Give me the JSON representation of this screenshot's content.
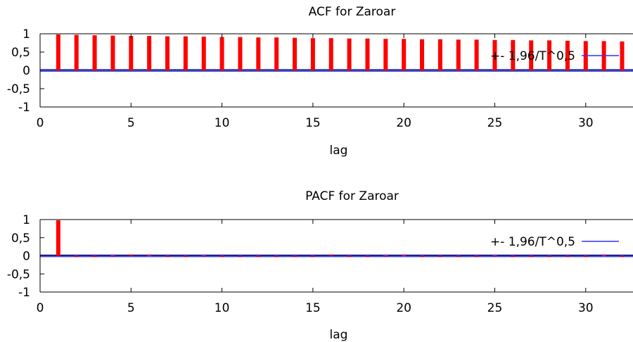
{
  "chart_data": [
    {
      "type": "bar",
      "title": "ACF for Zaroar",
      "xlabel": "lag",
      "ylabel": "",
      "xlim": [
        0,
        32.6
      ],
      "ylim": [
        -1,
        1
      ],
      "xticks": [
        "0",
        "5",
        "10",
        "15",
        "20",
        "25",
        "30"
      ],
      "xtick_values": [
        0,
        5,
        10,
        15,
        20,
        25,
        30
      ],
      "yticks": [
        "1",
        "0,5",
        "0",
        "-0,5",
        "-1"
      ],
      "ytick_values": [
        1,
        0.5,
        0,
        -0.5,
        -1
      ],
      "bar_color": "#ff0000",
      "band_color": "#3333ff",
      "legend_label": "+- 1,96/T^0,5",
      "legend_position": "top-right",
      "band": 0.025,
      "lags": [
        1,
        2,
        3,
        4,
        5,
        6,
        7,
        8,
        9,
        10,
        11,
        12,
        13,
        14,
        15,
        16,
        17,
        18,
        19,
        20,
        21,
        22,
        23,
        24,
        25,
        26,
        27,
        28,
        29,
        30,
        31,
        32
      ],
      "values": [
        0.98,
        0.97,
        0.96,
        0.95,
        0.94,
        0.94,
        0.93,
        0.93,
        0.92,
        0.91,
        0.91,
        0.9,
        0.9,
        0.89,
        0.88,
        0.88,
        0.87,
        0.87,
        0.86,
        0.86,
        0.85,
        0.85,
        0.84,
        0.84,
        0.83,
        0.83,
        0.82,
        0.82,
        0.81,
        0.8,
        0.8,
        0.79
      ]
    },
    {
      "type": "bar",
      "title": "PACF for Zaroar",
      "xlabel": "lag",
      "ylabel": "",
      "xlim": [
        0,
        32.6
      ],
      "ylim": [
        -1,
        1
      ],
      "xticks": [
        "0",
        "5",
        "10",
        "15",
        "20",
        "25",
        "30"
      ],
      "xtick_values": [
        0,
        5,
        10,
        15,
        20,
        25,
        30
      ],
      "yticks": [
        "1",
        "0,5",
        "0",
        "-0,5",
        "-1"
      ],
      "ytick_values": [
        1,
        0.5,
        0,
        -0.5,
        -1
      ],
      "bar_color": "#ff0000",
      "band_color": "#3333ff",
      "legend_label": "+- 1,96/T^0,5",
      "legend_position": "top-right",
      "band": 0.025,
      "lags": [
        1,
        2,
        3,
        4,
        5,
        6,
        7,
        8,
        9,
        10,
        11,
        12,
        13,
        14,
        15,
        16,
        17,
        18,
        19,
        20,
        21,
        22,
        23,
        24,
        25,
        26,
        27,
        28,
        29,
        30,
        31,
        32
      ],
      "values": [
        0.98,
        -0.03,
        -0.01,
        0.01,
        0.03,
        0.02,
        -0.01,
        0.0,
        0.01,
        -0.02,
        -0.03,
        -0.02,
        -0.02,
        -0.01,
        -0.02,
        0.03,
        0.0,
        -0.01,
        0.01,
        0.02,
        0.0,
        -0.01,
        0.0,
        -0.02,
        0.01,
        0.0,
        -0.02,
        -0.02,
        0.0,
        0.0,
        0.02,
        -0.03
      ]
    }
  ]
}
